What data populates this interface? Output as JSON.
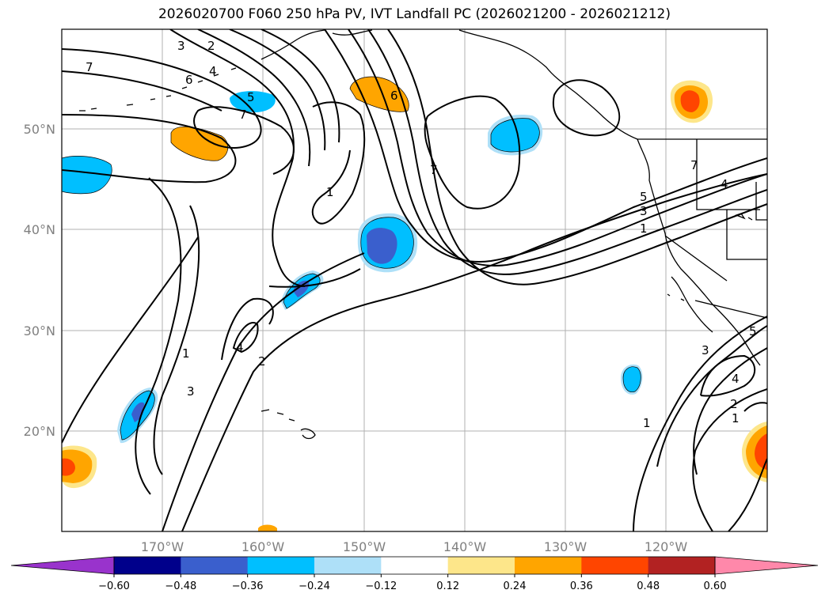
{
  "title": "2026020700 F060 250 hPa PV, IVT Landfall PC (2026021200 - 2026021212)",
  "lat_labels": [
    "50°N",
    "40°N",
    "30°N",
    "20°N"
  ],
  "lon_labels": [
    "170°W",
    "160°W",
    "150°W",
    "140°W",
    "130°W",
    "120°W"
  ],
  "colorbar": {
    "colors": [
      "#9933cc",
      "#00008b",
      "#3a5fcd",
      "#00bfff",
      "#aee0f8",
      "#ffffff",
      "#fde68a",
      "#ffa500",
      "#ff4500",
      "#b22222",
      "#ff88aa"
    ],
    "tick_labels": [
      "−0.60",
      "−0.48",
      "−0.36",
      "−0.24",
      "−0.12",
      "0.12",
      "0.24",
      "0.36",
      "0.48",
      "0.60"
    ]
  },
  "contour_labels": [
    "3",
    "2",
    "4",
    "6",
    "7",
    "5",
    "6",
    "7",
    "1",
    "7",
    "5",
    "3",
    "1",
    "1",
    "4",
    "2",
    "3",
    "1",
    "3",
    "4",
    "2",
    "1",
    "5",
    "7",
    "4"
  ]
}
